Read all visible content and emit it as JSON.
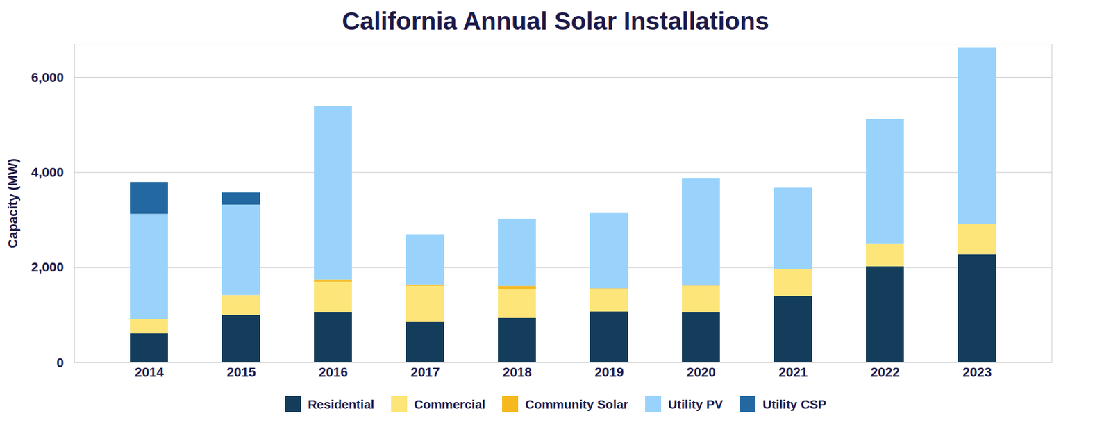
{
  "chart_data": {
    "type": "bar",
    "stacked": true,
    "title": "California Annual Solar Installations",
    "y_label": "Capacity (MW)",
    "categories": [
      "2014",
      "2015",
      "2016",
      "2017",
      "2018",
      "2019",
      "2020",
      "2021",
      "2022",
      "2023"
    ],
    "series": [
      {
        "name": "Residential",
        "color": "#143d5c",
        "values": [
          610,
          1000,
          1057,
          848,
          937,
          1071,
          1057,
          1399,
          2024,
          2277
        ]
      },
      {
        "name": "Commercial",
        "color": "#fde57a",
        "values": [
          300,
          415,
          640,
          760,
          610,
          475,
          550,
          565,
          475,
          640
        ]
      },
      {
        "name": "Community Solar",
        "color": "#f7b81e",
        "values": [
          0,
          0,
          45,
          30,
          60,
          10,
          10,
          0,
          0,
          0
        ]
      },
      {
        "name": "Utility PV",
        "color": "#99d3fb",
        "values": [
          2215,
          1905,
          3660,
          1056,
          1415,
          1585,
          2250,
          1710,
          2620,
          3705
        ]
      },
      {
        "name": "Utility CSP",
        "color": "#2368a0",
        "values": [
          670,
          255,
          0,
          0,
          0,
          0,
          0,
          0,
          0,
          0
        ]
      }
    ],
    "ylim": [
      0,
      6700
    ],
    "yticks": [
      0,
      {
        "value": 2000,
        "label": "2,000"
      },
      {
        "value": 4000,
        "label": "4,000"
      },
      {
        "value": 6000,
        "label": "6,000"
      }
    ],
    "grid": true,
    "legend": "bottom"
  }
}
